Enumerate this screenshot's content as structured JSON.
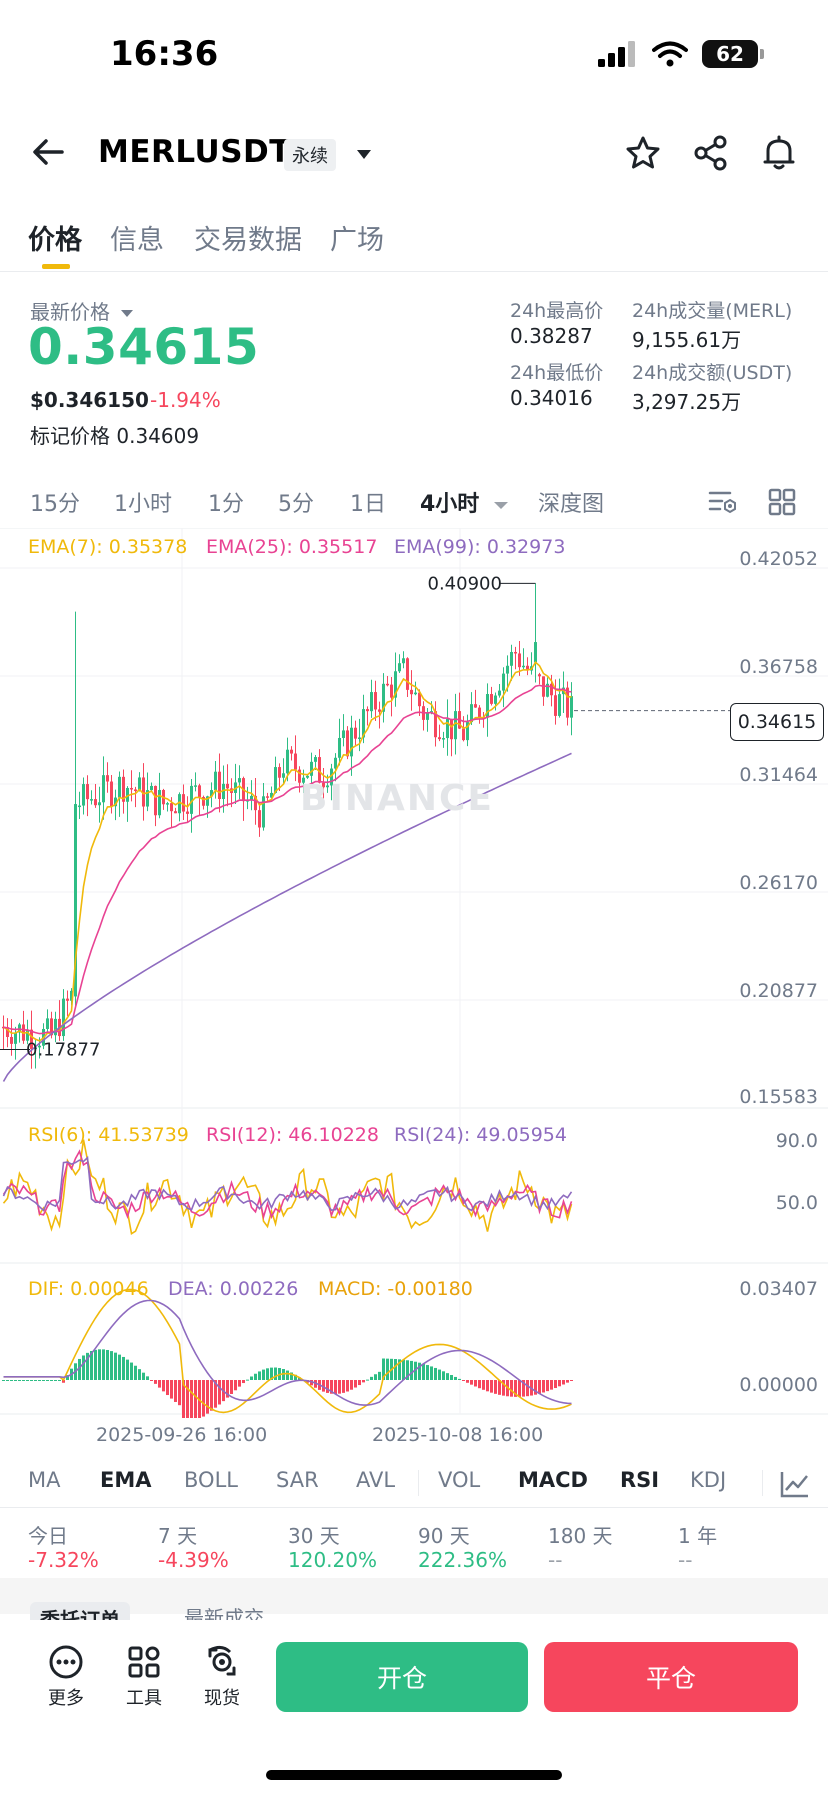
{
  "status_bar": {
    "time": "16:36",
    "battery": "62"
  },
  "header": {
    "symbol": "MERLUSDT",
    "badge": "永续"
  },
  "tabs": [
    "价格",
    "信息",
    "交易数据",
    "广场"
  ],
  "price": {
    "latest_label": "最新价格",
    "last": "0.34615",
    "usd": "$0.346150",
    "change_pct": "-1.94%",
    "mark_label": "标记价格",
    "mark": "0.34609"
  },
  "stats": {
    "high_label": "24h最高价",
    "high": "0.38287",
    "low_label": "24h最低价",
    "low": "0.34016",
    "vol_merl_label": "24h成交量(MERL)",
    "vol_merl": "9,155.61万",
    "vol_usdt_label": "24h成交额(USDT)",
    "vol_usdt": "3,297.25万"
  },
  "intervals": [
    "15分",
    "1小时",
    "1分",
    "5分",
    "1日",
    "4小时",
    "深度图"
  ],
  "active_interval": "4小时",
  "ema_legend": {
    "ema7": "EMA(7): 0.35378",
    "ema25": "EMA(25): 0.35517",
    "ema99": "EMA(99): 0.32973"
  },
  "rsi_legend": {
    "rsi6": "RSI(6): 41.53739",
    "rsi12": "RSI(12): 46.10228",
    "rsi24": "RSI(24): 49.05954"
  },
  "macd_legend": {
    "dif": "DIF: 0.00046",
    "dea": "DEA: 0.00226",
    "macd": "MACD: -0.00180"
  },
  "price_axis": [
    "0.42052",
    "0.36758",
    "0.31464",
    "0.26170",
    "0.20877",
    "0.15583"
  ],
  "rsi_axis": [
    "90.0",
    "50.0"
  ],
  "macd_axis": [
    "0.03407",
    "0.00000"
  ],
  "chart_annotations": {
    "high": "0.40900",
    "low": "0.17877",
    "current": "0.34615"
  },
  "watermark": "BINANCE",
  "x_dates": [
    "2025-09-26 16:00",
    "2025-10-08 16:00"
  ],
  "indicator_tabs": [
    "MA",
    "EMA",
    "BOLL",
    "SAR",
    "AVL",
    "VOL",
    "MACD",
    "RSI",
    "KDJ"
  ],
  "active_indicators": [
    "EMA",
    "MACD",
    "RSI"
  ],
  "performance": [
    {
      "label": "今日",
      "value": "-7.32%"
    },
    {
      "label": "7 天",
      "value": "-4.39%"
    },
    {
      "label": "30 天",
      "value": "120.20%"
    },
    {
      "label": "90 天",
      "value": "222.36%"
    },
    {
      "label": "180 天",
      "value": "--"
    },
    {
      "label": "1 年",
      "value": "--"
    }
  ],
  "order_tabs": [
    "委托订单",
    "最新成交"
  ],
  "bottom": {
    "more": "更多",
    "tools": "工具",
    "spot": "现货",
    "open": "开仓",
    "close": "平仓"
  },
  "colors": {
    "up": "#2ebd85",
    "down": "#f6465d",
    "ema7": "#f0b90b",
    "ema25": "#e84393",
    "ema99": "#8e6bbf",
    "accent": "#f0b90b"
  }
}
